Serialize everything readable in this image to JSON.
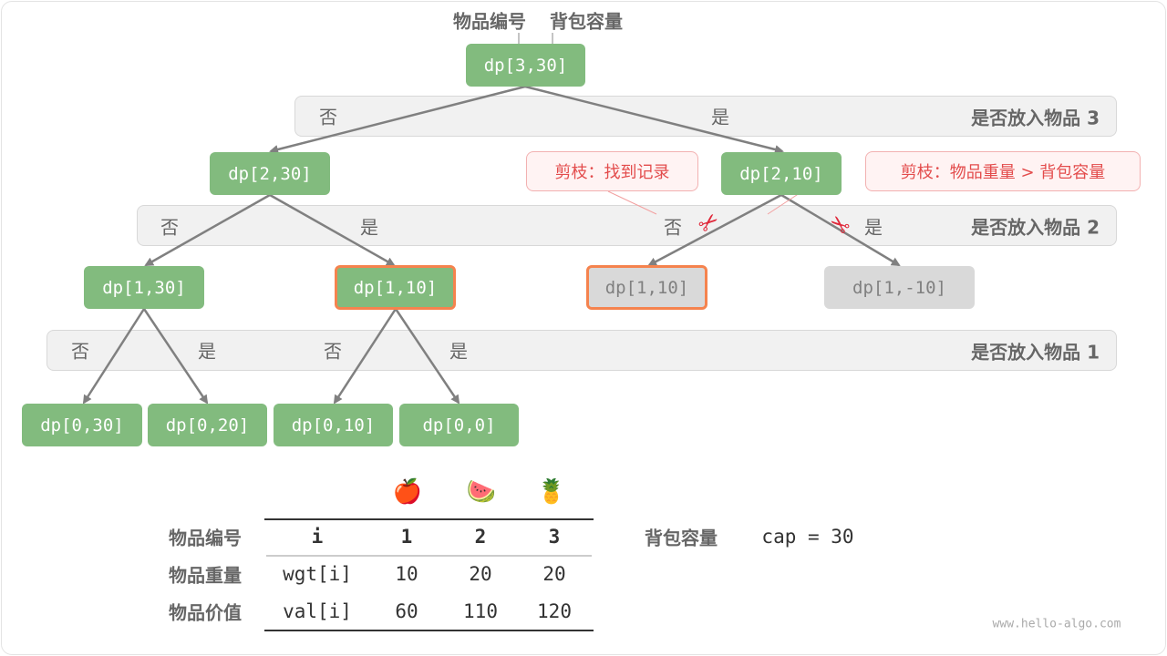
{
  "labels": {
    "item_id": "物品编号",
    "capacity": "背包容量"
  },
  "bands": [
    {
      "no": "否",
      "yes": "是",
      "label": "是否放入物品 3"
    },
    {
      "no": "否",
      "yes": "是",
      "no2": "否",
      "yes2": "是",
      "label": "是否放入物品 2"
    },
    {
      "no": "否",
      "yes": "是",
      "no2": "否",
      "yes2": "是",
      "label": "是否放入物品 1"
    }
  ],
  "nodes": {
    "root": "dp[3,30]",
    "l1": [
      "dp[2,30]",
      "dp[2,10]"
    ],
    "l2": [
      "dp[1,30]",
      "dp[1,10]",
      "dp[1,10]",
      "dp[1,-10]"
    ],
    "l3": [
      "dp[0,30]",
      "dp[0,20]",
      "dp[0,10]",
      "dp[0,0]"
    ]
  },
  "callouts": [
    "剪枝：找到记录",
    "剪枝：物品重量 > 背包容量"
  ],
  "icons": {
    "prune": "scissors-icon",
    "fruits": [
      "apple-icon",
      "watermelon-icon",
      "pineapple-icon"
    ]
  },
  "colors": {
    "node": "#82bb7e",
    "pruned": "#d9d9d9",
    "highlight": "#f5834e",
    "callout": "#e34c4c"
  },
  "table": {
    "row_labels": [
      "物品编号",
      "物品重量",
      "物品价值"
    ],
    "header": [
      "i",
      "1",
      "2",
      "3"
    ],
    "wgt": [
      "wgt[i]",
      "10",
      "20",
      "20"
    ],
    "val": [
      "val[i]",
      "60",
      "110",
      "120"
    ]
  },
  "capacity": {
    "label": "背包容量",
    "value": "cap = 30"
  },
  "watermark": "www.hello-algo.com"
}
